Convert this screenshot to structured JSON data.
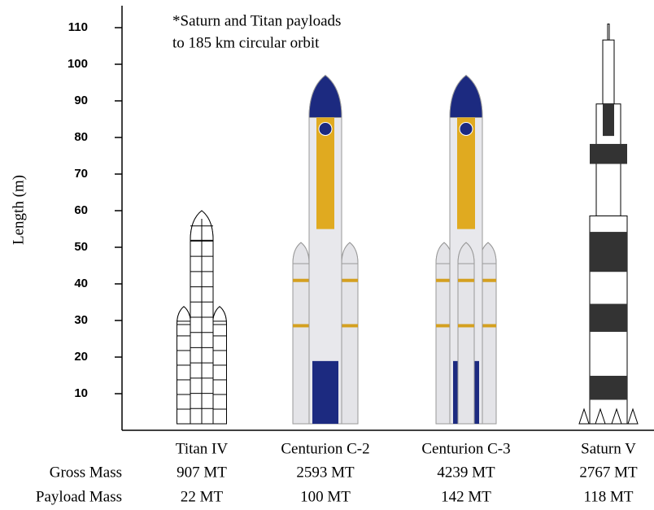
{
  "chart_data": {
    "type": "rocket",
    "y_label": "Length (m)",
    "annotation": [
      "*Saturn and Titan payloads",
      "to 185 km circular orbit"
    ],
    "categories": [
      "Titan IV",
      "Centurion C-2",
      "Centurion C-3",
      "Saturn V"
    ],
    "values": [
      60,
      97,
      97,
      111
    ],
    "ylim": [
      0,
      116
    ],
    "yticks": [
      10,
      20,
      30,
      40,
      50,
      60,
      70,
      80,
      90,
      100,
      110
    ],
    "rows": [
      {
        "label": "Gross Mass",
        "values": [
          "907 MT",
          "2593 MT",
          "4239 MT",
          "2767 MT"
        ]
      },
      {
        "label": "Payload Mass",
        "values": [
          "22 MT",
          "100 MT",
          "142 MT",
          "118 MT"
        ]
      }
    ]
  }
}
